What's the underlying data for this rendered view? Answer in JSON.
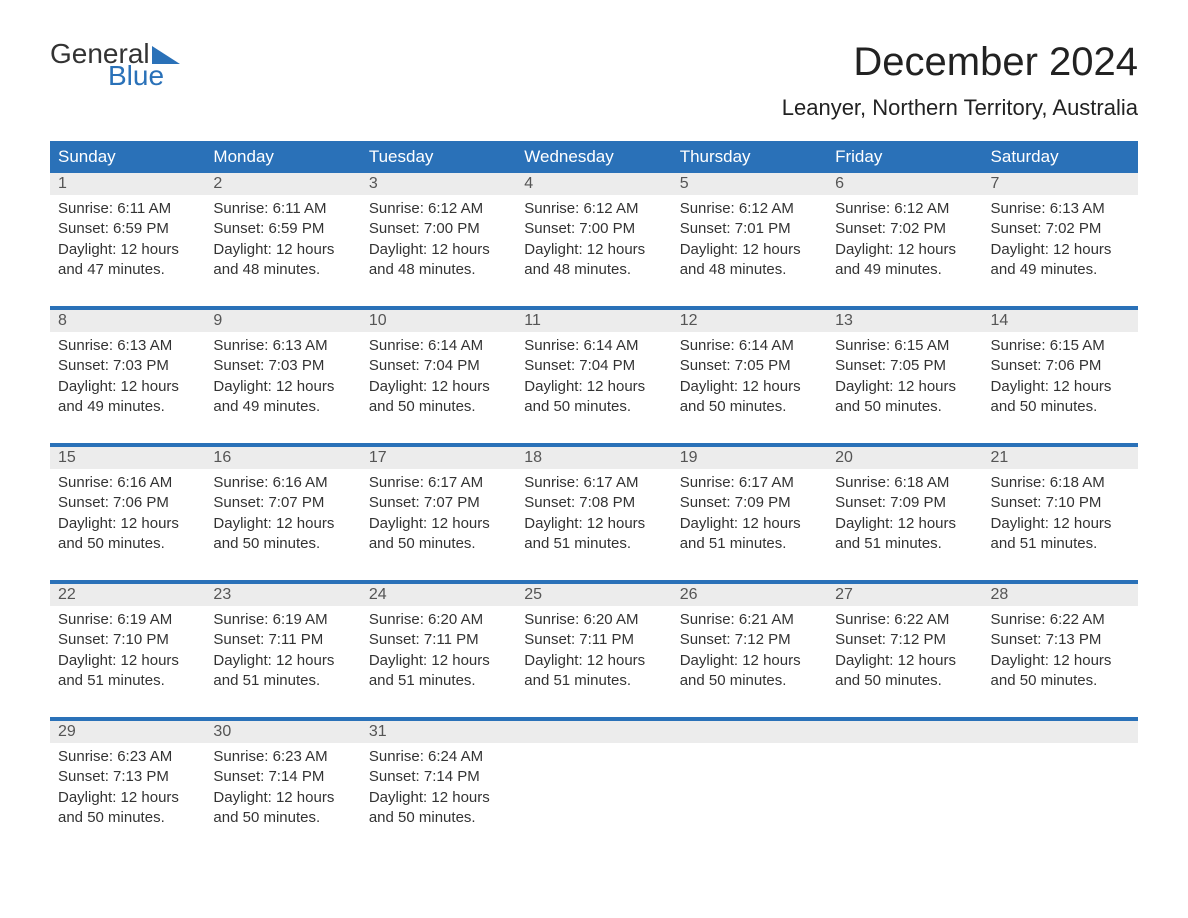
{
  "logo": {
    "text1": "General",
    "text2": "Blue",
    "flag_color": "#2a71b8"
  },
  "title": "December 2024",
  "location": "Leanyer, Northern Territory, Australia",
  "colors": {
    "header_bg": "#2a71b8",
    "header_text": "#ffffff",
    "daynum_bg": "#ececec",
    "daynum_text": "#555555",
    "body_text": "#333333",
    "page_bg": "#ffffff"
  },
  "day_headers": [
    "Sunday",
    "Monday",
    "Tuesday",
    "Wednesday",
    "Thursday",
    "Friday",
    "Saturday"
  ],
  "weeks": [
    [
      {
        "n": "1",
        "sr": "Sunrise: 6:11 AM",
        "ss": "Sunset: 6:59 PM",
        "d1": "Daylight: 12 hours",
        "d2": "and 47 minutes."
      },
      {
        "n": "2",
        "sr": "Sunrise: 6:11 AM",
        "ss": "Sunset: 6:59 PM",
        "d1": "Daylight: 12 hours",
        "d2": "and 48 minutes."
      },
      {
        "n": "3",
        "sr": "Sunrise: 6:12 AM",
        "ss": "Sunset: 7:00 PM",
        "d1": "Daylight: 12 hours",
        "d2": "and 48 minutes."
      },
      {
        "n": "4",
        "sr": "Sunrise: 6:12 AM",
        "ss": "Sunset: 7:00 PM",
        "d1": "Daylight: 12 hours",
        "d2": "and 48 minutes."
      },
      {
        "n": "5",
        "sr": "Sunrise: 6:12 AM",
        "ss": "Sunset: 7:01 PM",
        "d1": "Daylight: 12 hours",
        "d2": "and 48 minutes."
      },
      {
        "n": "6",
        "sr": "Sunrise: 6:12 AM",
        "ss": "Sunset: 7:02 PM",
        "d1": "Daylight: 12 hours",
        "d2": "and 49 minutes."
      },
      {
        "n": "7",
        "sr": "Sunrise: 6:13 AM",
        "ss": "Sunset: 7:02 PM",
        "d1": "Daylight: 12 hours",
        "d2": "and 49 minutes."
      }
    ],
    [
      {
        "n": "8",
        "sr": "Sunrise: 6:13 AM",
        "ss": "Sunset: 7:03 PM",
        "d1": "Daylight: 12 hours",
        "d2": "and 49 minutes."
      },
      {
        "n": "9",
        "sr": "Sunrise: 6:13 AM",
        "ss": "Sunset: 7:03 PM",
        "d1": "Daylight: 12 hours",
        "d2": "and 49 minutes."
      },
      {
        "n": "10",
        "sr": "Sunrise: 6:14 AM",
        "ss": "Sunset: 7:04 PM",
        "d1": "Daylight: 12 hours",
        "d2": "and 50 minutes."
      },
      {
        "n": "11",
        "sr": "Sunrise: 6:14 AM",
        "ss": "Sunset: 7:04 PM",
        "d1": "Daylight: 12 hours",
        "d2": "and 50 minutes."
      },
      {
        "n": "12",
        "sr": "Sunrise: 6:14 AM",
        "ss": "Sunset: 7:05 PM",
        "d1": "Daylight: 12 hours",
        "d2": "and 50 minutes."
      },
      {
        "n": "13",
        "sr": "Sunrise: 6:15 AM",
        "ss": "Sunset: 7:05 PM",
        "d1": "Daylight: 12 hours",
        "d2": "and 50 minutes."
      },
      {
        "n": "14",
        "sr": "Sunrise: 6:15 AM",
        "ss": "Sunset: 7:06 PM",
        "d1": "Daylight: 12 hours",
        "d2": "and 50 minutes."
      }
    ],
    [
      {
        "n": "15",
        "sr": "Sunrise: 6:16 AM",
        "ss": "Sunset: 7:06 PM",
        "d1": "Daylight: 12 hours",
        "d2": "and 50 minutes."
      },
      {
        "n": "16",
        "sr": "Sunrise: 6:16 AM",
        "ss": "Sunset: 7:07 PM",
        "d1": "Daylight: 12 hours",
        "d2": "and 50 minutes."
      },
      {
        "n": "17",
        "sr": "Sunrise: 6:17 AM",
        "ss": "Sunset: 7:07 PM",
        "d1": "Daylight: 12 hours",
        "d2": "and 50 minutes."
      },
      {
        "n": "18",
        "sr": "Sunrise: 6:17 AM",
        "ss": "Sunset: 7:08 PM",
        "d1": "Daylight: 12 hours",
        "d2": "and 51 minutes."
      },
      {
        "n": "19",
        "sr": "Sunrise: 6:17 AM",
        "ss": "Sunset: 7:09 PM",
        "d1": "Daylight: 12 hours",
        "d2": "and 51 minutes."
      },
      {
        "n": "20",
        "sr": "Sunrise: 6:18 AM",
        "ss": "Sunset: 7:09 PM",
        "d1": "Daylight: 12 hours",
        "d2": "and 51 minutes."
      },
      {
        "n": "21",
        "sr": "Sunrise: 6:18 AM",
        "ss": "Sunset: 7:10 PM",
        "d1": "Daylight: 12 hours",
        "d2": "and 51 minutes."
      }
    ],
    [
      {
        "n": "22",
        "sr": "Sunrise: 6:19 AM",
        "ss": "Sunset: 7:10 PM",
        "d1": "Daylight: 12 hours",
        "d2": "and 51 minutes."
      },
      {
        "n": "23",
        "sr": "Sunrise: 6:19 AM",
        "ss": "Sunset: 7:11 PM",
        "d1": "Daylight: 12 hours",
        "d2": "and 51 minutes."
      },
      {
        "n": "24",
        "sr": "Sunrise: 6:20 AM",
        "ss": "Sunset: 7:11 PM",
        "d1": "Daylight: 12 hours",
        "d2": "and 51 minutes."
      },
      {
        "n": "25",
        "sr": "Sunrise: 6:20 AM",
        "ss": "Sunset: 7:11 PM",
        "d1": "Daylight: 12 hours",
        "d2": "and 51 minutes."
      },
      {
        "n": "26",
        "sr": "Sunrise: 6:21 AM",
        "ss": "Sunset: 7:12 PM",
        "d1": "Daylight: 12 hours",
        "d2": "and 50 minutes."
      },
      {
        "n": "27",
        "sr": "Sunrise: 6:22 AM",
        "ss": "Sunset: 7:12 PM",
        "d1": "Daylight: 12 hours",
        "d2": "and 50 minutes."
      },
      {
        "n": "28",
        "sr": "Sunrise: 6:22 AM",
        "ss": "Sunset: 7:13 PM",
        "d1": "Daylight: 12 hours",
        "d2": "and 50 minutes."
      }
    ],
    [
      {
        "n": "29",
        "sr": "Sunrise: 6:23 AM",
        "ss": "Sunset: 7:13 PM",
        "d1": "Daylight: 12 hours",
        "d2": "and 50 minutes."
      },
      {
        "n": "30",
        "sr": "Sunrise: 6:23 AM",
        "ss": "Sunset: 7:14 PM",
        "d1": "Daylight: 12 hours",
        "d2": "and 50 minutes."
      },
      {
        "n": "31",
        "sr": "Sunrise: 6:24 AM",
        "ss": "Sunset: 7:14 PM",
        "d1": "Daylight: 12 hours",
        "d2": "and 50 minutes."
      },
      {
        "n": "",
        "sr": "",
        "ss": "",
        "d1": "",
        "d2": ""
      },
      {
        "n": "",
        "sr": "",
        "ss": "",
        "d1": "",
        "d2": ""
      },
      {
        "n": "",
        "sr": "",
        "ss": "",
        "d1": "",
        "d2": ""
      },
      {
        "n": "",
        "sr": "",
        "ss": "",
        "d1": "",
        "d2": ""
      }
    ]
  ]
}
